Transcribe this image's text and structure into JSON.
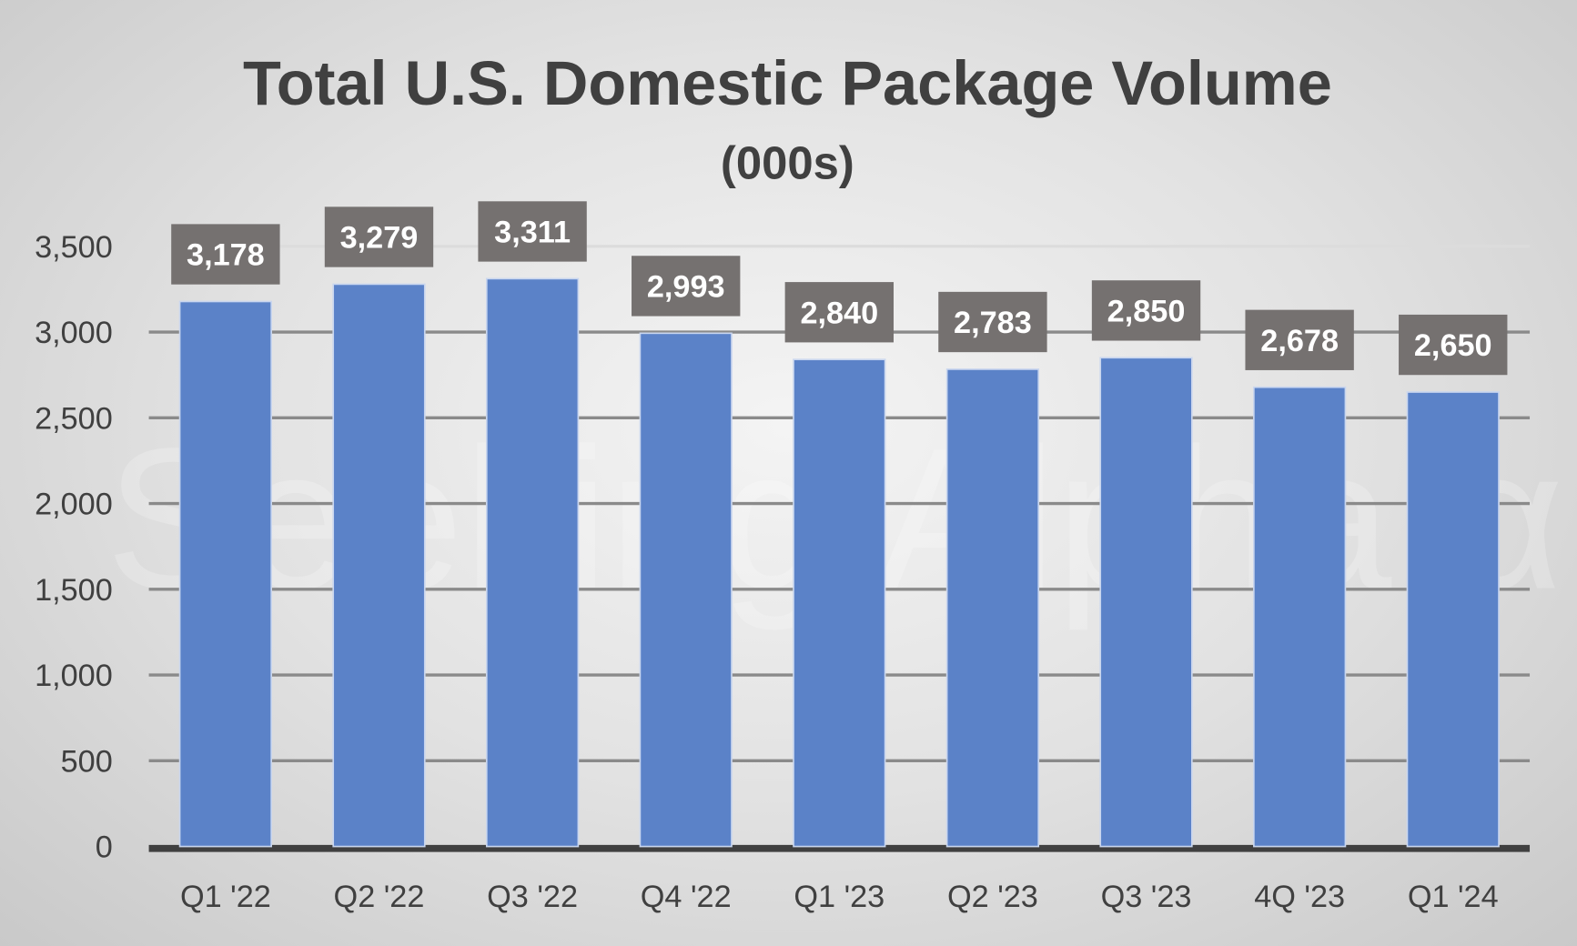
{
  "watermark": "Seeking Alpha α",
  "chart_data": {
    "type": "bar",
    "title": "Total U.S. Domestic Package Volume",
    "subtitle": "(000s)",
    "xlabel": "",
    "ylabel": "",
    "categories": [
      "Q1 '22",
      "Q2 '22",
      "Q3 '22",
      "Q4 '22",
      "Q1 '23",
      "Q2 '23",
      "Q3 '23",
      "4Q '23",
      "Q1 '24"
    ],
    "values": [
      3178,
      3279,
      3311,
      2993,
      2840,
      2783,
      2850,
      2678,
      2650
    ],
    "data_labels": [
      "3,178",
      "3,279",
      "3,311",
      "2,993",
      "2,840",
      "2,783",
      "2,850",
      "2,678",
      "2,650"
    ],
    "ylim": [
      0,
      3500
    ],
    "yticks": [
      0,
      500,
      1000,
      1500,
      2000,
      2500,
      3000,
      3500
    ],
    "ytick_labels": [
      "0",
      "500",
      "1,000",
      "1,500",
      "2,000",
      "2,500",
      "3,000",
      "3,500"
    ],
    "grid": true,
    "legend": "none",
    "colors": {
      "bar": "#5b82c8",
      "label_box": "#757170",
      "label_text": "#ffffff",
      "text": "#404040"
    }
  }
}
